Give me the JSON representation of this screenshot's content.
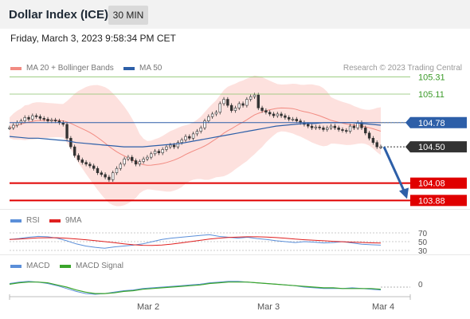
{
  "header": {
    "title": "Dollar Index (ICE)",
    "timeframe": "30 MIN"
  },
  "datetime": "Friday, March 3, 2023 9:58:34 PM CET",
  "credit": "Research © 2023 Trading Central",
  "legend": {
    "ma20": {
      "label": "MA 20 + Bollinger Bands",
      "color": "#f28b82"
    },
    "ma50": {
      "label": "MA 50",
      "color": "#2d5fa8"
    },
    "rsi": {
      "label": "RSI",
      "color": "#5b8fd9"
    },
    "rsi9": {
      "label": "9MA",
      "color": "#e02020"
    },
    "macd": {
      "label": "MACD",
      "color": "#5b8fd9"
    },
    "macd_signal": {
      "label": "MACD Signal",
      "color": "#3aa52b"
    }
  },
  "chart_data": {
    "type": "candlestick",
    "ylim": [
      103.8,
      105.35
    ],
    "x_ticks": [
      "Mar 2",
      "Mar 3",
      "Mar 4"
    ],
    "close": [
      104.72,
      104.75,
      104.78,
      104.8,
      104.84,
      104.82,
      104.86,
      104.85,
      104.83,
      104.82,
      104.8,
      104.81,
      104.8,
      104.78,
      104.76,
      104.6,
      104.5,
      104.4,
      104.35,
      104.32,
      104.3,
      104.28,
      104.25,
      104.2,
      104.18,
      104.15,
      104.12,
      104.2,
      104.25,
      104.3,
      104.36,
      104.38,
      104.34,
      104.3,
      104.33,
      104.36,
      104.38,
      104.42,
      104.45,
      104.43,
      104.47,
      104.5,
      104.52,
      104.5,
      104.55,
      104.58,
      104.62,
      104.6,
      104.65,
      104.68,
      104.72,
      104.8,
      104.85,
      104.88,
      104.9,
      105.0,
      105.05,
      104.98,
      104.92,
      104.95,
      105.0,
      104.98,
      105.05,
      105.08,
      105.1,
      104.95,
      104.92,
      104.9,
      104.88,
      104.86,
      104.88,
      104.86,
      104.84,
      104.82,
      104.82,
      104.8,
      104.78,
      104.76,
      104.74,
      104.72,
      104.73,
      104.72,
      104.7,
      104.72,
      104.74,
      104.72,
      104.7,
      104.69,
      104.68,
      104.74,
      104.72,
      104.78,
      104.72,
      104.66,
      104.6,
      104.55,
      104.5,
      104.5
    ],
    "ma50": [
      104.62,
      104.61,
      104.6,
      104.6,
      104.59,
      104.58,
      104.57,
      104.55,
      104.54,
      104.53,
      104.52,
      104.51,
      104.5,
      104.5,
      104.5,
      104.51,
      104.52,
      104.53,
      104.54,
      104.56,
      104.58,
      104.6,
      104.62,
      104.64,
      104.66,
      104.68,
      104.7,
      104.72,
      104.74,
      104.75,
      104.76,
      104.77,
      104.77,
      104.78,
      104.78,
      104.78,
      104.78,
      104.77,
      104.76,
      104.75
    ],
    "levels": [
      {
        "label": "105.31",
        "value": 105.31,
        "color": "#8ac36b",
        "type": "resistance"
      },
      {
        "label": "105.11",
        "value": 105.11,
        "color": "#8ac36b",
        "type": "resistance"
      },
      {
        "label": "104.78",
        "value": 104.78,
        "color": "#2d5fa8",
        "type": "pivot"
      },
      {
        "label": "104.50",
        "value": 104.5,
        "color": "#333333",
        "type": "last"
      },
      {
        "label": "104.08",
        "value": 104.08,
        "color": "#e00000",
        "type": "support"
      },
      {
        "label": "103.88",
        "value": 103.88,
        "color": "#e00000",
        "type": "support"
      }
    ],
    "forecast_arrow": {
      "from": 104.5,
      "to": 103.88,
      "color": "#2d5fa8"
    },
    "rsi": {
      "levels": [
        "70",
        "50",
        "30"
      ],
      "values": [
        55,
        57,
        60,
        62,
        61,
        58,
        52,
        45,
        40,
        37,
        35,
        38,
        40,
        42,
        45,
        50,
        55,
        58,
        60,
        62,
        64,
        66,
        62,
        60,
        58,
        60,
        57,
        55,
        52,
        50,
        48,
        50,
        49,
        47,
        48,
        50,
        47,
        44,
        43,
        42
      ]
    },
    "macd": {
      "zero_label": "0",
      "macd": [
        0.05,
        0.07,
        0.08,
        0.07,
        0.05,
        0.02,
        -0.02,
        -0.06,
        -0.09,
        -0.1,
        -0.09,
        -0.07,
        -0.05,
        -0.04,
        -0.02,
        -0.01,
        0.0,
        0.01,
        0.02,
        0.03,
        0.04,
        0.06,
        0.07,
        0.08,
        0.08,
        0.07,
        0.06,
        0.05,
        0.04,
        0.03,
        0.02,
        0.0,
        -0.01,
        -0.02,
        -0.02,
        -0.02,
        -0.01,
        -0.02,
        -0.03,
        -0.04
      ],
      "signal": [
        0.04,
        0.06,
        0.07,
        0.07,
        0.06,
        0.03,
        0.0,
        -0.04,
        -0.07,
        -0.09,
        -0.09,
        -0.08,
        -0.06,
        -0.05,
        -0.03,
        -0.02,
        -0.01,
        0.0,
        0.01,
        0.02,
        0.03,
        0.05,
        0.06,
        0.07,
        0.07,
        0.07,
        0.06,
        0.05,
        0.04,
        0.03,
        0.02,
        0.01,
        0.0,
        -0.01,
        -0.01,
        -0.02,
        -0.02,
        -0.02,
        -0.02,
        -0.03
      ]
    }
  }
}
